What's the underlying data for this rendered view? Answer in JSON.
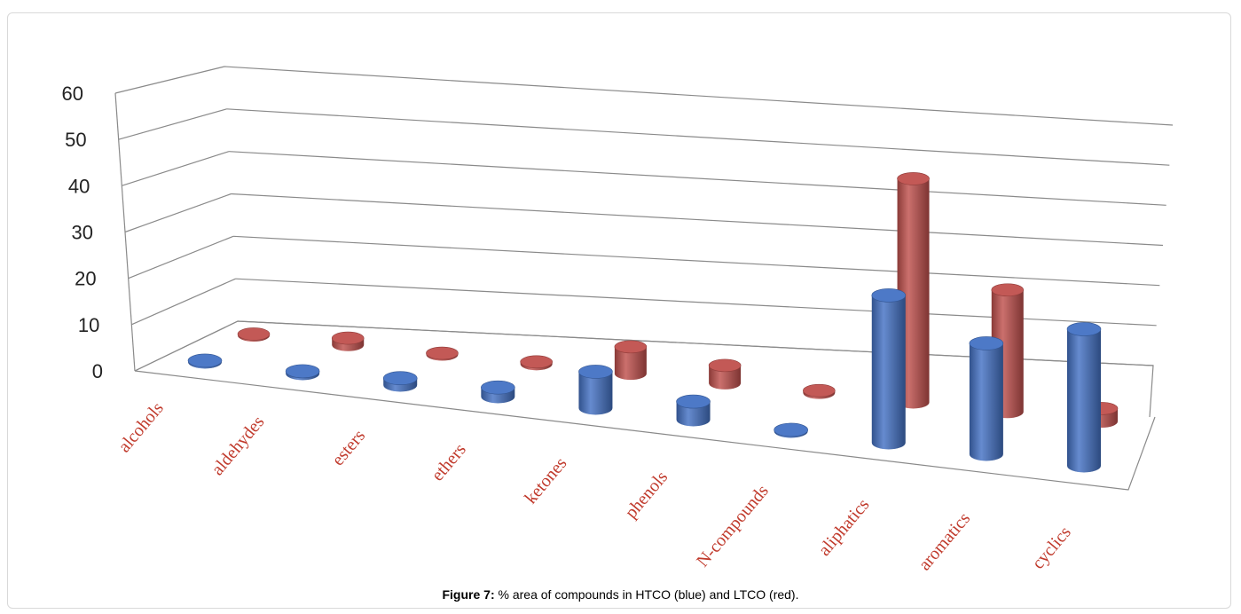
{
  "caption": {
    "label": "Figure 7:",
    "text": " % area of compounds in HTCO (blue) and LTCO (red)."
  },
  "colors": {
    "blue": "#4472c4",
    "red": "#c0504d"
  },
  "chart_data": {
    "type": "bar",
    "subtype": "3d-cylinder",
    "title": "",
    "xlabel": "",
    "ylabel": "",
    "ylim": [
      0,
      60
    ],
    "yticks": [
      0,
      10,
      20,
      30,
      40,
      50,
      60
    ],
    "grid": true,
    "categories": [
      "alcohols",
      "aldehydes",
      "esters",
      "ethers",
      "ketones",
      "phenols",
      "N-compounds",
      "aliphatics",
      "aromatics",
      "cyclics"
    ],
    "series": [
      {
        "color": "#4472c4",
        "values": [
          0.3,
          0.5,
          1.5,
          2,
          8,
          4,
          0.3,
          33,
          25,
          31
        ]
      },
      {
        "color": "#c0504d",
        "values": [
          0.3,
          1.5,
          0.3,
          0.5,
          6,
          4,
          0.5,
          51,
          28,
          3
        ]
      }
    ]
  }
}
